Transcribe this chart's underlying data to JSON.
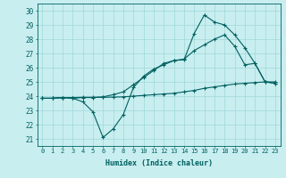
{
  "xlabel": "Humidex (Indice chaleur)",
  "bg_color": "#c8eef0",
  "grid_color": "#a0d8d8",
  "line_color": "#006060",
  "xlim": [
    -0.5,
    23.5
  ],
  "ylim": [
    20.5,
    30.5
  ],
  "xticks": [
    0,
    1,
    2,
    3,
    4,
    5,
    6,
    7,
    8,
    9,
    10,
    11,
    12,
    13,
    14,
    15,
    16,
    17,
    18,
    19,
    20,
    21,
    22,
    23
  ],
  "yticks": [
    21,
    22,
    23,
    24,
    25,
    26,
    27,
    28,
    29,
    30
  ],
  "line1_x": [
    0,
    1,
    2,
    3,
    4,
    5,
    6,
    7,
    8,
    9,
    10,
    11,
    12,
    13,
    14,
    15,
    16,
    17,
    18,
    19,
    20,
    21,
    22,
    23
  ],
  "line1_y": [
    23.85,
    23.85,
    23.9,
    23.9,
    23.92,
    23.92,
    23.92,
    23.93,
    23.95,
    24.0,
    24.05,
    24.1,
    24.15,
    24.2,
    24.3,
    24.4,
    24.55,
    24.65,
    24.75,
    24.85,
    24.9,
    24.95,
    25.0,
    25.0
  ],
  "line2_x": [
    0,
    1,
    2,
    3,
    4,
    5,
    6,
    7,
    8,
    9,
    10,
    11,
    12,
    13,
    14,
    15,
    16,
    17,
    18,
    19,
    20,
    21,
    22,
    23
  ],
  "line2_y": [
    23.85,
    23.85,
    23.9,
    23.85,
    23.6,
    22.9,
    21.1,
    21.7,
    22.7,
    24.6,
    25.4,
    25.9,
    26.2,
    26.5,
    26.55,
    28.4,
    29.7,
    29.2,
    29.0,
    28.3,
    27.4,
    26.3,
    25.0,
    24.9
  ],
  "line3_x": [
    0,
    1,
    2,
    3,
    4,
    5,
    6,
    7,
    8,
    9,
    10,
    11,
    12,
    13,
    14,
    15,
    16,
    17,
    18,
    19,
    20,
    21,
    22,
    23
  ],
  "line3_y": [
    23.85,
    23.85,
    23.9,
    23.85,
    23.9,
    23.9,
    23.95,
    24.1,
    24.3,
    24.8,
    25.3,
    25.8,
    26.3,
    26.5,
    26.6,
    27.2,
    27.6,
    28.0,
    28.3,
    27.5,
    26.2,
    26.3,
    25.0,
    24.9
  ]
}
